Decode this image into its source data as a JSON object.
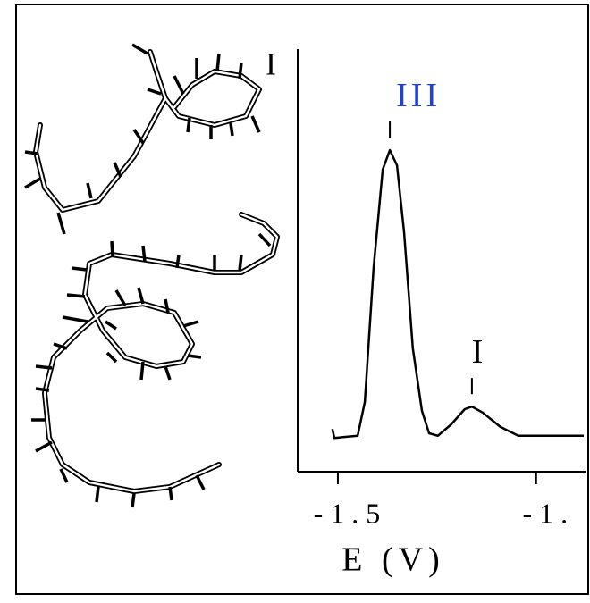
{
  "diagram": {
    "label": "I"
  },
  "chart_data": {
    "type": "line",
    "xlabel": "E (V)",
    "x": [
      -1.514,
      -1.509,
      -1.45,
      -1.432,
      -1.41,
      -1.387,
      -1.369,
      -1.351,
      -1.333,
      -1.311,
      -1.288,
      -1.27,
      -1.248,
      -1.214,
      -1.18,
      -1.162,
      -1.135,
      -1.09,
      -1.045,
      -1.0,
      -0.88
    ],
    "series": [
      {
        "color": "#000000",
        "values": [
          10.1,
          8.0,
          8.5,
          16.5,
          48.2,
          71.5,
          76.1,
          72.5,
          56.7,
          29.2,
          14.4,
          9.1,
          8.5,
          11.2,
          14.8,
          15.4,
          14.0,
          10.6,
          8.5,
          8.5,
          8.5
        ]
      }
    ],
    "xlim": [
      -1.6,
      -0.88
    ],
    "ylim": [
      0,
      100
    ],
    "xticks": [
      {
        "value": -1.5,
        "label": "- 1 . 5"
      },
      {
        "value": -1.0,
        "label": "- 1 ."
      }
    ],
    "annotations": [
      {
        "text": "III",
        "color": "#1f3fd6",
        "x": -1.369,
        "y": 76.1
      },
      {
        "text": "I",
        "color": "#000000",
        "x": -1.162,
        "y": 15.4
      }
    ]
  }
}
